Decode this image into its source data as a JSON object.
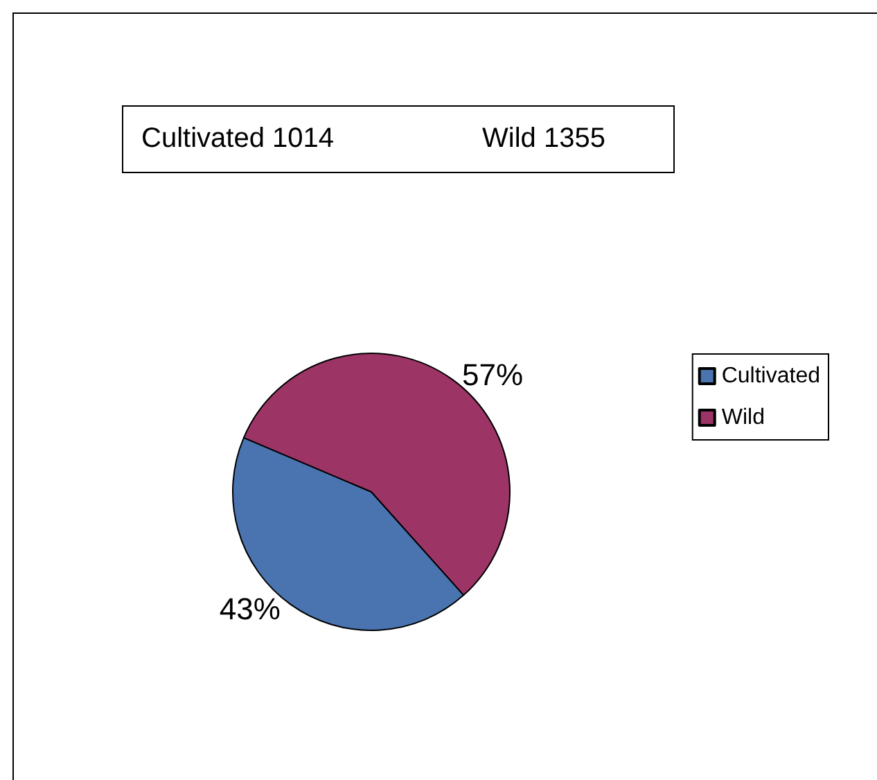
{
  "chart_data": {
    "type": "pie",
    "annotations": [
      "Cultivated 1014",
      "Wild 1355"
    ],
    "categories": [
      "Cultivated",
      "Wild"
    ],
    "values": [
      43,
      57
    ],
    "value_labels": [
      "43%",
      "57%"
    ],
    "colors": [
      "#4a74b0",
      "#9c3566"
    ],
    "legend": "right"
  }
}
